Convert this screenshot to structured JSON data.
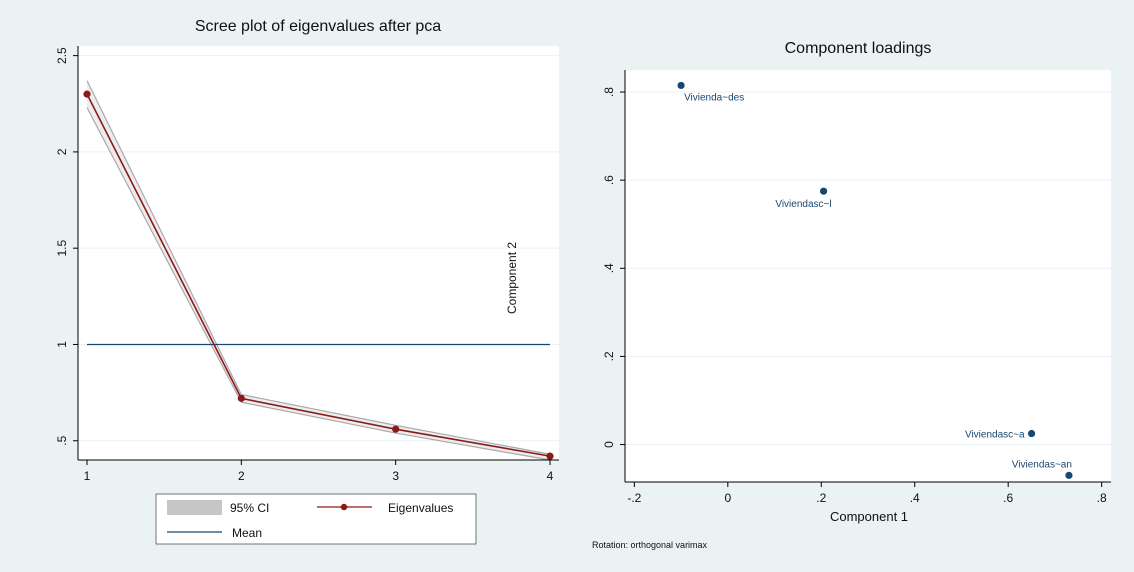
{
  "colors": {
    "outer_bg": "#eaf2f3",
    "plot_bg": "#ffffff",
    "grid": "#eaf2f3",
    "eigen": "#8b1a1a",
    "ci": "#a9a9a9",
    "mean": "#1a476f",
    "points": "#1a476f",
    "text": "#111111"
  },
  "chart_data": [
    {
      "type": "line",
      "title": "Scree plot of eigenvalues after pca",
      "xlabel": "",
      "ylabel": "",
      "overlay_text": "Component 2",
      "xlim": [
        1,
        4
      ],
      "ylim": [
        0.4,
        2.55
      ],
      "x_ticks": [
        1,
        2,
        3,
        4
      ],
      "x_tick_labels": [
        "1",
        "2",
        "3",
        "4"
      ],
      "y_ticks": [
        0.5,
        1,
        1.5,
        2,
        2.5
      ],
      "y_tick_labels": [
        ".5",
        "1",
        "1.5",
        "2",
        "2.5"
      ],
      "grid": true,
      "x": [
        1,
        2,
        3,
        4
      ],
      "series": [
        {
          "name": "Eigenvalues",
          "values": [
            2.3,
            0.72,
            0.56,
            0.42
          ]
        },
        {
          "name": "95% CI",
          "lower": [
            2.23,
            0.7,
            0.54,
            0.4
          ],
          "upper": [
            2.37,
            0.74,
            0.58,
            0.43
          ]
        },
        {
          "name": "Mean",
          "values": [
            1,
            1,
            1,
            1
          ]
        }
      ],
      "legend": {
        "placement": "bottom",
        "entries": [
          "95% CI",
          "Eigenvalues",
          "Mean"
        ]
      }
    },
    {
      "type": "scatter",
      "title": "Component loadings",
      "xlabel": "Component 1",
      "ylabel": "",
      "note": "Rotation: orthogonal varimax",
      "xlim": [
        -0.22,
        0.82
      ],
      "ylim": [
        -0.085,
        0.85
      ],
      "x_ticks": [
        -0.2,
        0,
        0.2,
        0.4,
        0.6,
        0.8
      ],
      "x_tick_labels": [
        "-.2",
        "0",
        ".2",
        ".4",
        ".6",
        ".8"
      ],
      "y_ticks": [
        0,
        0.2,
        0.4,
        0.6,
        0.8
      ],
      "y_tick_labels": [
        "0",
        ".2",
        ".4",
        ".6",
        ".8"
      ],
      "grid": true,
      "points": [
        {
          "label": "Vivienda~des",
          "x": -0.1,
          "y": 0.815,
          "label_pos": "below-right"
        },
        {
          "label": "Viviendasc~l",
          "x": 0.205,
          "y": 0.575,
          "label_pos": "below-left"
        },
        {
          "label": "Viviendasc~a",
          "x": 0.65,
          "y": 0.025,
          "label_pos": "left"
        },
        {
          "label": "Viviendas~an",
          "x": 0.73,
          "y": -0.07,
          "label_pos": "above-left"
        }
      ]
    }
  ]
}
